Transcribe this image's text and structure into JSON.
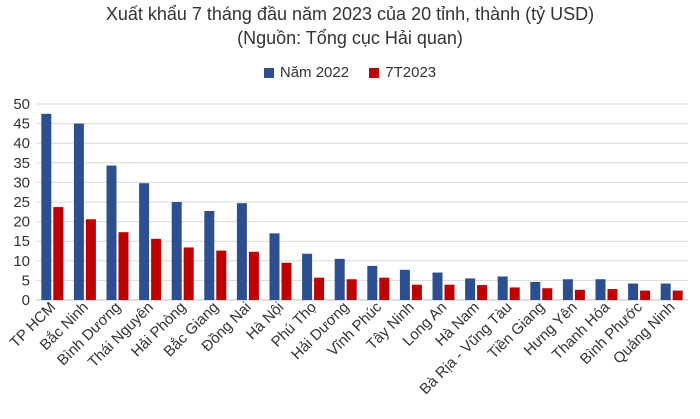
{
  "chart_data": {
    "type": "bar",
    "title": "Xuất khẩu 7 tháng đầu năm 2023 của 20 tỉnh, thành (tỷ USD)",
    "subtitle": "(Nguồn: Tổng cục Hải quan)",
    "xlabel": "",
    "ylabel": "",
    "ylim": [
      0,
      50
    ],
    "yticks": [
      "0",
      "5",
      "10",
      "15",
      "20",
      "25",
      "30",
      "35",
      "40",
      "45",
      "50"
    ],
    "grid": true,
    "legend_position": "top",
    "categories": [
      "TP HCM",
      "Bắc Ninh",
      "Bình Dương",
      "Thái Nguyên",
      "Hải Phòng",
      "Bắc Giang",
      "Đồng Nai",
      "Hà Nội",
      "Phú Thọ",
      "Hải Dương",
      "Vĩnh Phúc",
      "Tây Ninh",
      "Long An",
      "Hà Nam",
      "Bà Rịa - Vũng Tàu",
      "Tiền Giang",
      "Hưng Yên",
      "Thanh Hóa",
      "Bình Phước",
      "Quảng Ninh"
    ],
    "series": [
      {
        "name": "Năm 2022",
        "color": "#2E4F8F",
        "values": [
          47.5,
          45,
          34.3,
          29.8,
          25,
          22.7,
          24.7,
          17,
          11.8,
          10.5,
          8.7,
          7.7,
          7,
          5.5,
          6,
          4.6,
          5.3,
          5.3,
          4.2,
          4.2
        ]
      },
      {
        "name": "7T2023",
        "color": "#C00000",
        "values": [
          23.7,
          20.6,
          17.3,
          15.6,
          13.4,
          12.6,
          12.3,
          9.5,
          5.7,
          5.3,
          5.7,
          3.9,
          3.9,
          3.8,
          3.2,
          3,
          2.6,
          2.8,
          2.4,
          2.4
        ]
      }
    ]
  }
}
